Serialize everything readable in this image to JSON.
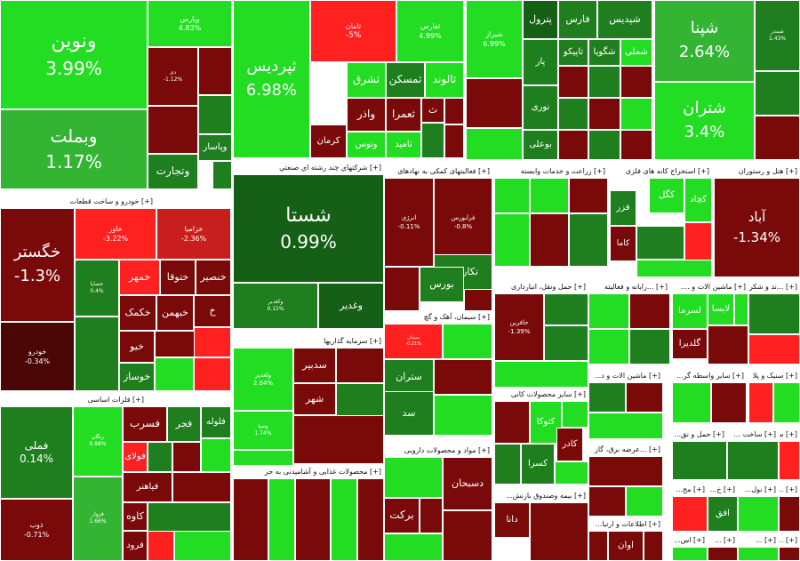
{
  "colors": {
    "up_strong": "#22dd22",
    "up": "#33b533",
    "up_dark": "#1f7f1f",
    "up_deep": "#165f16",
    "down_strong": "#ff2020",
    "down": "#c81e1e",
    "down_dark": "#7a0a0a",
    "down_deep": "#4a0505"
  },
  "sectors": [
    {
      "name": "[+] خودرو و ساخت قطعات"
    },
    {
      "name": "[+] فلزات اساسی"
    },
    {
      "name": "[+] شرکتهاي چند رشته اي صنعتي"
    },
    {
      "name": "[+] سرمایه گذاریها"
    },
    {
      "name": "[+] محصولات غذایی و آشامیدنی به جز"
    },
    {
      "name": "[+] فعالیتهای کمکی به نهادهای"
    },
    {
      "name": "[+] سیمان، آهک و گچ"
    },
    {
      "name": "[+] مواد و محصولات دارویی"
    },
    {
      "name": "[+] زراعت و خدمات وابسته"
    },
    {
      "name": "[+] استخراج کانه های فلزی"
    },
    {
      "name": "[+] هتل و رستوران"
    },
    {
      "name": "[+] حمل ونقل، انبارداری"
    },
    {
      "name": "[+] ...رایانه و فعالیته"
    },
    {
      "name": "[+] ماشین الات و ...."
    },
    {
      "name": "[+] ...ند و شکر"
    },
    {
      "name": "[+] سایر محصولات کانی"
    },
    {
      "name": "[+] ماشین الات و د..."
    },
    {
      "name": "[+] سایر واسطه گر..."
    },
    {
      "name": "[+] سنیک و پلا"
    },
    {
      "name": "[+] ...عرضه برق، گاز"
    },
    {
      "name": "[+] حمل و نق..."
    },
    {
      "name": "[+] ساخت ..."
    },
    {
      "name": "[+] س..."
    },
    {
      "name": "[+] بیمه وصندوق بازنش..."
    },
    {
      "name": "[+] اطلاعات و ارتبا..."
    },
    {
      "name": "[+] مح..."
    },
    {
      "name": "[+] خ..."
    },
    {
      "name": "[+] نول..."
    },
    {
      "name": "[+] ..."
    },
    {
      "name": "[+] اس..."
    },
    {
      "name": "[+] ..."
    },
    {
      "name": "[+] ..."
    },
    {
      "name": "[+] ..."
    }
  ],
  "tiles": [
    {
      "sym": "ونوین",
      "pct": "3.99%",
      "c": "up_strong"
    },
    {
      "sym": "وبملت",
      "pct": "1.17%",
      "c": "up"
    },
    {
      "sym": "وپارس",
      "pct": "4.83%",
      "c": "up_strong"
    },
    {
      "sym": "دی",
      "pct": "-1.12%",
      "c": "down_dark"
    },
    {
      "sym": "",
      "pct": "",
      "c": "down_dark"
    },
    {
      "sym": "",
      "pct": "",
      "c": "up_dark"
    },
    {
      "sym": "",
      "pct": "",
      "c": "down_dark"
    },
    {
      "sym": "وپاسار",
      "pct": "",
      "c": "up_dark"
    },
    {
      "sym": "وتجارت",
      "pct": "",
      "c": "up_dark"
    },
    {
      "sym": "ثپردیس",
      "pct": "6.98%",
      "c": "up_strong"
    },
    {
      "sym": "ثامان",
      "pct": "-5%",
      "c": "down_strong"
    },
    {
      "sym": "ثفارس",
      "pct": "4.99%",
      "c": "up_strong"
    },
    {
      "sym": "ثشرق",
      "pct": "",
      "c": "up_strong"
    },
    {
      "sym": "ثمسکن",
      "pct": "",
      "c": "up_dark"
    },
    {
      "sym": "ثالوند",
      "pct": "",
      "c": "up_strong"
    },
    {
      "sym": "واذر",
      "pct": "",
      "c": "down_dark"
    },
    {
      "sym": "ثعمرا",
      "pct": "",
      "c": "down_dark"
    },
    {
      "sym": "ث",
      "pct": "",
      "c": "down_dark"
    },
    {
      "sym": "کرمان",
      "pct": "",
      "c": "down_dark"
    },
    {
      "sym": "وتوس",
      "pct": "",
      "c": "up_strong"
    },
    {
      "sym": "ثامید",
      "pct": "",
      "c": "up_strong"
    },
    {
      "sym": "شیراز",
      "pct": "6.99%",
      "c": "up_strong"
    },
    {
      "sym": "پترول",
      "pct": "",
      "c": "up_deep"
    },
    {
      "sym": "فارس",
      "pct": "",
      "c": "up_dark"
    },
    {
      "sym": "شپدیس",
      "pct": "",
      "c": "up_dark"
    },
    {
      "sym": "شگویا",
      "pct": "",
      "c": "up_dark"
    },
    {
      "sym": "تاپیکو",
      "pct": "",
      "c": "up_dark"
    },
    {
      "sym": "شملی",
      "pct": "",
      "c": "up_strong"
    },
    {
      "sym": "پار",
      "pct": "",
      "c": "up_dark"
    },
    {
      "sym": "نوری",
      "pct": "",
      "c": "up_dark"
    },
    {
      "sym": "بوعلی",
      "pct": "",
      "c": "up_dark"
    },
    {
      "sym": "شپنا",
      "pct": "2.64%",
      "c": "up"
    },
    {
      "sym": "شتران",
      "pct": "3.4%",
      "c": "up_strong"
    },
    {
      "sym": "شبندر",
      "pct": "1.43%",
      "c": "up_dark"
    },
    {
      "sym": "خگستر",
      "pct": "-1.3%",
      "c": "down_dark"
    },
    {
      "sym": "خاور",
      "pct": "-3.22%",
      "c": "down_strong"
    },
    {
      "sym": "خزامیا",
      "pct": "-2.36%",
      "c": "down"
    },
    {
      "sym": "خودرو",
      "pct": "-0.34%",
      "c": "down_deep"
    },
    {
      "sym": "خساپا",
      "pct": "0.4%",
      "c": "up_dark"
    },
    {
      "sym": "خمهر",
      "pct": "",
      "c": "down_strong"
    },
    {
      "sym": "ختوقا",
      "pct": "",
      "c": "down_dark"
    },
    {
      "sym": "خنصیر",
      "pct": "",
      "c": "down_dark"
    },
    {
      "sym": "خکمک",
      "pct": "",
      "c": "down_dark"
    },
    {
      "sym": "خبهمن",
      "pct": "",
      "c": "down_dark"
    },
    {
      "sym": "خ",
      "pct": "",
      "c": "down_dark"
    },
    {
      "sym": "خیو",
      "pct": "",
      "c": "down_dark"
    },
    {
      "sym": "خوساز",
      "pct": "",
      "c": "up_dark"
    },
    {
      "sym": "فملی",
      "pct": "0.14%",
      "c": "up_dark"
    },
    {
      "sym": "ذوب",
      "pct": "-0.71%",
      "c": "down_dark"
    },
    {
      "sym": "زنگان",
      "pct": "6.98%",
      "c": "up_strong"
    },
    {
      "sym": "فسرب",
      "pct": "",
      "c": "down_dark"
    },
    {
      "sym": "فجر",
      "pct": "",
      "c": "up_dark"
    },
    {
      "sym": "فلوله",
      "pct": "",
      "c": "up_dark"
    },
    {
      "sym": "فولای",
      "pct": "",
      "c": "down_strong"
    },
    {
      "sym": "فزوار",
      "pct": "1.66%",
      "c": "up"
    },
    {
      "sym": "فیاهنر",
      "pct": "",
      "c": "down_dark"
    },
    {
      "sym": "کاوه",
      "pct": "",
      "c": "down_dark"
    },
    {
      "sym": "فرود",
      "pct": "",
      "c": "down_dark"
    },
    {
      "sym": "شستا",
      "pct": "0.99%",
      "c": "up_deep"
    },
    {
      "sym": "وکغدیر",
      "pct": "0.15%",
      "c": "up_dark"
    },
    {
      "sym": "وغدیر",
      "pct": "",
      "c": "up_deep"
    },
    {
      "sym": "انرژی",
      "pct": "-0.11%",
      "c": "down_dark"
    },
    {
      "sym": "فرابورس",
      "pct": "-0.8%",
      "c": "down_dark"
    },
    {
      "sym": "تکاردان",
      "pct": "",
      "c": "up_dark"
    },
    {
      "sym": "بورس",
      "pct": "",
      "c": "up_dark"
    },
    {
      "sym": "سیمان",
      "pct": "-0.21%",
      "c": "down_strong"
    },
    {
      "sym": "ستران",
      "pct": "",
      "c": "up_dark"
    },
    {
      "sym": "سد",
      "pct": "",
      "c": "up_dark"
    },
    {
      "sym": "حافرین",
      "pct": "-1.39%",
      "c": "down_dark"
    },
    {
      "sym": "ولغدیر",
      "pct": "2.04%",
      "c": "up_strong"
    },
    {
      "sym": "سدبیر",
      "pct": "",
      "c": "down_dark"
    },
    {
      "sym": "شهر",
      "pct": "",
      "c": "down_dark"
    },
    {
      "sym": "وسپا",
      "pct": "1.74%",
      "c": "up_strong"
    },
    {
      "sym": "دسبحان",
      "pct": "",
      "c": "down_dark"
    },
    {
      "sym": "برکت",
      "pct": "",
      "c": "down_dark"
    },
    {
      "sym": "کچاد",
      "pct": "",
      "c": "up_strong"
    },
    {
      "sym": "کگل",
      "pct": "",
      "c": "up_strong"
    },
    {
      "sym": "فزر",
      "pct": "",
      "c": "up_dark"
    },
    {
      "sym": "کاما",
      "pct": "",
      "c": "down_dark"
    },
    {
      "sym": "آباد",
      "pct": "-1.34%",
      "c": "down_dark"
    },
    {
      "sym": "کتوکا",
      "pct": "",
      "c": "up_strong"
    },
    {
      "sym": "کسرا",
      "pct": "",
      "c": "up_dark"
    },
    {
      "sym": "کادر",
      "pct": "",
      "c": "down_dark"
    },
    {
      "sym": "لسرما",
      "pct": "",
      "c": "up_strong"
    },
    {
      "sym": "لابسا",
      "pct": "",
      "c": "up_strong"
    },
    {
      "sym": "گلدیرا",
      "pct": "",
      "c": "down_dark"
    },
    {
      "sym": "افق",
      "pct": "",
      "c": "up_dark"
    },
    {
      "sym": "دانا",
      "pct": "",
      "c": "down_dark"
    },
    {
      "sym": "اوان",
      "pct": "",
      "c": "down_dark"
    }
  ]
}
